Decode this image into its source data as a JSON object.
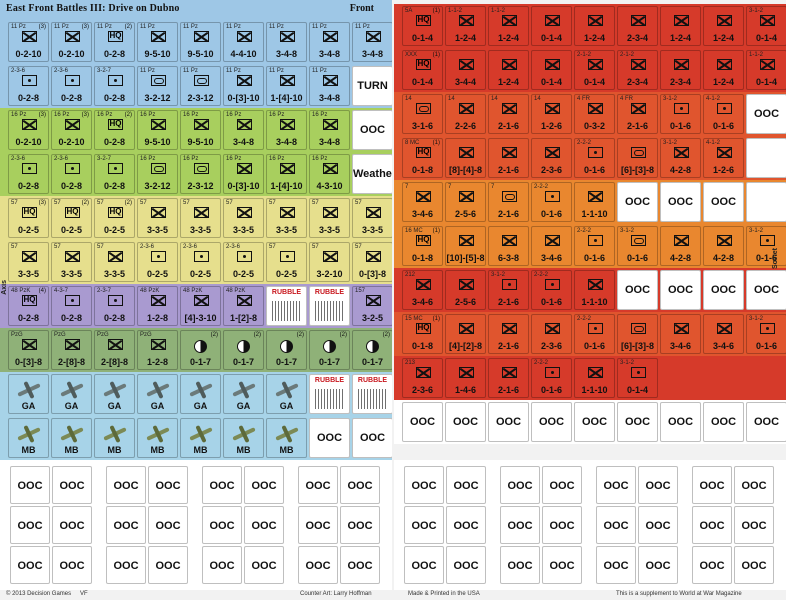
{
  "header": {
    "title": "East Front Battles III: Drive on Dubno",
    "side": "Front"
  },
  "side_labels": {
    "axis": "Axis",
    "soviet": "Soviet"
  },
  "footer": {
    "copyright": "© 2013 Decision Games",
    "code": "VF",
    "art": "Counter Art: Larry Hoffman",
    "made": "Made & Printed in the USA",
    "supplement": "This is a supplement to World at War Magazine"
  },
  "colors": {
    "axis_blue": "#9ec7e6",
    "axis_green": "#a8cf5e",
    "axis_yellow": "#e6df8d",
    "axis_purple": "#a99ad0",
    "axis_darkgreen": "#8fb178",
    "axis_lightblue": "#a7d3e8",
    "soviet_red": "#d63a2a",
    "soviet_orangered": "#e0552e",
    "soviet_orange": "#e9872f"
  },
  "axis": {
    "rows": [
      {
        "color": "axis_blue",
        "counters": [
          {
            "top": "11 Pz",
            "tag": "(3)",
            "sym": "inf",
            "vals": "0-2-10"
          },
          {
            "top": "11 Pz",
            "tag": "(3)",
            "sym": "inf",
            "vals": "0-2-10"
          },
          {
            "top": "11 Pz",
            "tag": "(2)",
            "sym": "hq",
            "hq": "HQ",
            "vals": "0-2-8"
          },
          {
            "top": "11 Pz",
            "sym": "inf",
            "vals": "9-5-10"
          },
          {
            "top": "11 Pz",
            "sym": "inf",
            "vals": "9-5-10"
          },
          {
            "top": "11 Pz",
            "sym": "inf",
            "vals": "4-4-10"
          },
          {
            "top": "11 Pz",
            "sym": "inf",
            "vals": "3-4-8"
          },
          {
            "top": "11 Pz",
            "sym": "inf",
            "vals": "3-4-8"
          },
          {
            "top": "11 Pz",
            "sym": "inf",
            "vals": "3-4-8"
          }
        ]
      },
      {
        "color": "axis_blue",
        "counters": [
          {
            "top": "2-3-6",
            "sym": "art",
            "vals": "0-2-8"
          },
          {
            "top": "2-3-6",
            "sym": "art",
            "vals": "0-2-8"
          },
          {
            "top": "3-2-7",
            "sym": "art",
            "vals": "0-2-8"
          },
          {
            "top": "11 Pz",
            "sym": "arm",
            "vals": "3-2-12"
          },
          {
            "top": "11 Pz",
            "sym": "arm",
            "vals": "2-3-12"
          },
          {
            "top": "11 Pz",
            "sym": "inf",
            "vals": "0-[3]-10"
          },
          {
            "top": "11 Pz",
            "sym": "inf",
            "vals": "1-[4]-10"
          },
          {
            "top": "11 Pz",
            "sym": "inf",
            "vals": "3-4-8"
          },
          {
            "white": true,
            "big": "TURN"
          }
        ]
      },
      {
        "color": "axis_green",
        "counters": [
          {
            "top": "16 Pz",
            "tag": "(3)",
            "sym": "inf",
            "vals": "0-2-10"
          },
          {
            "top": "16 Pz",
            "tag": "(3)",
            "sym": "inf",
            "vals": "0-2-10"
          },
          {
            "top": "16 Pz",
            "tag": "(2)",
            "sym": "hq",
            "hq": "HQ",
            "vals": "0-2-8"
          },
          {
            "top": "16 Pz",
            "sym": "inf",
            "vals": "9-5-10"
          },
          {
            "top": "16 Pz",
            "sym": "inf",
            "vals": "9-5-10"
          },
          {
            "top": "16 Pz",
            "sym": "inf",
            "vals": "3-4-8"
          },
          {
            "top": "16 Pz",
            "sym": "inf",
            "vals": "3-4-8"
          },
          {
            "top": "16 Pz",
            "sym": "inf",
            "vals": "3-4-8"
          },
          {
            "white": true,
            "big": "OOC"
          }
        ]
      },
      {
        "color": "axis_green",
        "counters": [
          {
            "top": "2-3-6",
            "sym": "art",
            "vals": "0-2-8"
          },
          {
            "top": "2-3-6",
            "sym": "art",
            "vals": "0-2-8"
          },
          {
            "top": "3-2-7",
            "sym": "art",
            "vals": "0-2-8"
          },
          {
            "top": "16 Pz",
            "sym": "arm",
            "vals": "3-2-12"
          },
          {
            "top": "16 Pz",
            "sym": "arm",
            "vals": "2-3-12"
          },
          {
            "top": "16 Pz",
            "sym": "inf",
            "vals": "0-[3]-10"
          },
          {
            "top": "16 Pz",
            "sym": "inf",
            "vals": "1-[4]-10"
          },
          {
            "top": "16 Pz",
            "sym": "inf",
            "vals": "4-3-10"
          },
          {
            "white": true,
            "big": "Weather"
          }
        ]
      },
      {
        "color": "axis_yellow",
        "counters": [
          {
            "top": "57",
            "tag": "(3)",
            "sym": "hq",
            "hq": "HQ",
            "vals": "0-2-5"
          },
          {
            "top": "57",
            "tag": "(2)",
            "sym": "hq",
            "hq": "HQ",
            "vals": "0-2-5"
          },
          {
            "top": "57",
            "tag": "(2)",
            "sym": "hq",
            "hq": "HQ",
            "vals": "0-2-5"
          },
          {
            "top": "57",
            "sym": "inf",
            "vals": "3-3-5"
          },
          {
            "top": "57",
            "sym": "inf",
            "vals": "3-3-5"
          },
          {
            "top": "57",
            "sym": "inf",
            "vals": "3-3-5"
          },
          {
            "top": "57",
            "sym": "inf",
            "vals": "3-3-5"
          },
          {
            "top": "57",
            "sym": "inf",
            "vals": "3-3-5"
          },
          {
            "top": "57",
            "sym": "inf",
            "vals": "3-3-5"
          }
        ]
      },
      {
        "color": "axis_yellow",
        "counters": [
          {
            "top": "57",
            "sym": "inf",
            "vals": "3-3-5"
          },
          {
            "top": "57",
            "sym": "inf",
            "vals": "3-3-5"
          },
          {
            "top": "57",
            "sym": "inf",
            "vals": "3-3-5"
          },
          {
            "top": "2-3-6",
            "sym": "art",
            "vals": "0-2-5"
          },
          {
            "top": "2-3-6",
            "sym": "art",
            "vals": "0-2-5"
          },
          {
            "top": "2-3-6",
            "sym": "art",
            "vals": "0-2-5"
          },
          {
            "top": "57",
            "sym": "art",
            "vals": "0-2-5"
          },
          {
            "top": "57",
            "sym": "inf",
            "vals": "3-2-10"
          },
          {
            "top": "57",
            "sym": "inf",
            "vals": "0-[3]-8"
          }
        ]
      },
      {
        "color": "axis_purple",
        "counters": [
          {
            "top": "48 PzK",
            "tag": "(4)",
            "sym": "hq",
            "hq": "HQ",
            "vals": "0-2-8"
          },
          {
            "top": "4-3-7",
            "sym": "art",
            "vals": "0-2-8"
          },
          {
            "top": "2-3-7",
            "sym": "art",
            "vals": "0-2-8"
          },
          {
            "top": "48 PzK",
            "sym": "inf",
            "vals": "1-2-8"
          },
          {
            "top": "48 PzK",
            "sym": "inf",
            "vals": "[4]-3-10"
          },
          {
            "top": "48 PzK",
            "sym": "inf",
            "vals": "1-[2]-8"
          },
          {
            "rubble": true,
            "label": "RUBBLE"
          },
          {
            "rubble": true,
            "label": "RUBBLE"
          },
          {
            "top": "157",
            "sym": "inf",
            "vals": "3-2-5"
          }
        ]
      },
      {
        "color": "axis_darkgreen",
        "counters": [
          {
            "top": "PzG",
            "sym": "inf",
            "vals": "0-[3]-8"
          },
          {
            "top": "PzG",
            "sym": "inf",
            "vals": "2-[8]-8"
          },
          {
            "top": "PzG",
            "sym": "inf",
            "vals": "2-[8]-8"
          },
          {
            "top": "PzG",
            "sym": "inf",
            "vals": "1-2-8"
          },
          {
            "tag": "(2)",
            "moon": true,
            "vals": "0-1-7"
          },
          {
            "tag": "(2)",
            "moon": true,
            "vals": "0-1-7"
          },
          {
            "tag": "(2)",
            "moon": true,
            "vals": "0-1-7"
          },
          {
            "tag": "(2)",
            "moon": true,
            "vals": "0-1-7"
          },
          {
            "tag": "(2)",
            "moon": true,
            "vals": "0-1-7"
          }
        ]
      },
      {
        "color": "axis_lightblue",
        "counters": [
          {
            "plane": "ga",
            "vals": "GA"
          },
          {
            "plane": "ga",
            "vals": "GA"
          },
          {
            "plane": "ga",
            "vals": "GA"
          },
          {
            "plane": "ga",
            "vals": "GA"
          },
          {
            "plane": "ga",
            "vals": "GA"
          },
          {
            "plane": "ga",
            "vals": "GA"
          },
          {
            "plane": "ga",
            "vals": "GA"
          },
          {
            "rubble": true,
            "label": "RUBBLE"
          },
          {
            "rubble": true,
            "label": "RUBBLE"
          }
        ]
      },
      {
        "color": "axis_lightblue",
        "counters": [
          {
            "plane": "mb",
            "vals": "MB"
          },
          {
            "plane": "mb",
            "vals": "MB"
          },
          {
            "plane": "mb",
            "vals": "MB"
          },
          {
            "plane": "mb",
            "vals": "MB"
          },
          {
            "plane": "mb",
            "vals": "MB"
          },
          {
            "plane": "mb",
            "vals": "MB"
          },
          {
            "plane": "mb",
            "vals": "MB"
          },
          {
            "white": true,
            "big": "OOC"
          },
          {
            "white": true,
            "big": "OOC"
          }
        ]
      }
    ]
  },
  "soviet": {
    "rows": [
      {
        "color": "soviet_red",
        "counters": [
          {
            "top": "5A",
            "tag": "(1)",
            "sym": "hq",
            "hq": "HQ",
            "vals": "0-1-4"
          },
          {
            "top": "1-1-2",
            "sym": "inf",
            "vals": "1-2-4"
          },
          {
            "top": "1-1-2",
            "sym": "inf",
            "vals": "1-2-4"
          },
          {
            "sym": "inf",
            "vals": "0-1-4"
          },
          {
            "sym": "inf",
            "vals": "1-2-4"
          },
          {
            "sym": "inf",
            "vals": "2-3-4"
          },
          {
            "sym": "inf",
            "vals": "1-2-4"
          },
          {
            "sym": "inf",
            "vals": "1-2-4"
          },
          {
            "top": "3-1-2",
            "sym": "inf",
            "vals": "0-1-4"
          }
        ]
      },
      {
        "color": "soviet_red",
        "counters": [
          {
            "top": "XXX",
            "tag": "(1)",
            "sym": "hq",
            "hq": "HQ",
            "vals": "0-1-4"
          },
          {
            "sym": "inf",
            "vals": "3-4-4"
          },
          {
            "sym": "inf",
            "vals": "1-2-4"
          },
          {
            "sym": "inf",
            "vals": "0-1-4"
          },
          {
            "top": "2-1-2",
            "sym": "inf",
            "vals": "0-1-4"
          },
          {
            "top": "2-1-2",
            "sym": "inf",
            "vals": "2-3-4"
          },
          {
            "sym": "inf",
            "vals": "2-3-4"
          },
          {
            "sym": "inf",
            "vals": "1-2-4"
          },
          {
            "top": "1-1-2",
            "sym": "inf",
            "vals": "0-1-4"
          }
        ]
      },
      {
        "color": "soviet_orangered",
        "counters": [
          {
            "top": "14",
            "sym": "arm",
            "vals": "3-1-6"
          },
          {
            "top": "14",
            "sym": "inf",
            "vals": "2-2-6"
          },
          {
            "top": "14",
            "sym": "inf",
            "vals": "2-1-6"
          },
          {
            "top": "14",
            "sym": "inf",
            "vals": "1-2-6"
          },
          {
            "top": "4 FR",
            "sym": "inf",
            "vals": "0-3-2"
          },
          {
            "top": "4 FR",
            "sym": "inf",
            "vals": "2-1-6"
          },
          {
            "top": "3-1-2",
            "sym": "art",
            "vals": "0-1-6"
          },
          {
            "top": "4-1-2",
            "sym": "art",
            "vals": "0-1-6"
          },
          {
            "white": true,
            "big": "OOC"
          }
        ]
      },
      {
        "color": "soviet_orangered",
        "counters": [
          {
            "top": "8 MC",
            "tag": "(1)",
            "sym": "hq",
            "hq": "HQ",
            "vals": "0-1-8"
          },
          {
            "sym": "inf",
            "vals": "[8]-[4]-8"
          },
          {
            "sym": "inf",
            "vals": "2-1-6"
          },
          {
            "sym": "inf",
            "vals": "2-3-6"
          },
          {
            "top": "2-2-2",
            "sym": "art",
            "vals": "0-1-6"
          },
          {
            "sym": "arm",
            "vals": "[6]-[3]-8"
          },
          {
            "top": "3-1-2",
            "sym": "inf",
            "vals": "4-2-8"
          },
          {
            "top": "4-1-2",
            "sym": "inf",
            "vals": "1-2-6"
          },
          {
            "white": true,
            "big": ""
          }
        ]
      },
      {
        "color": "soviet_orange",
        "counters": [
          {
            "top": "7",
            "sym": "inf",
            "vals": "3-4-6"
          },
          {
            "top": "7",
            "sym": "inf",
            "vals": "2-5-6"
          },
          {
            "top": "7",
            "sym": "arm",
            "vals": "2-1-6"
          },
          {
            "top": "2-2-2",
            "sym": "art",
            "vals": "0-1-6"
          },
          {
            "sym": "inf",
            "vals": "1-1-10"
          },
          {
            "white": true,
            "big": "OOC"
          },
          {
            "white": true,
            "big": "OOC"
          },
          {
            "white": true,
            "big": "OOC"
          },
          {
            "white": true,
            "big": ""
          }
        ]
      },
      {
        "color": "soviet_orange",
        "counters": [
          {
            "top": "16 MC",
            "tag": "(1)",
            "sym": "hq",
            "hq": "HQ",
            "vals": "0-1-8"
          },
          {
            "sym": "inf",
            "vals": "[10]-[5]-8"
          },
          {
            "sym": "inf",
            "vals": "6-3-8"
          },
          {
            "sym": "inf",
            "vals": "3-4-6"
          },
          {
            "top": "2-2-2",
            "sym": "art",
            "vals": "0-1-6"
          },
          {
            "top": "3-1-2",
            "sym": "arm",
            "vals": "0-1-6"
          },
          {
            "sym": "inf",
            "vals": "4-2-8"
          },
          {
            "sym": "inf",
            "vals": "4-2-8"
          },
          {
            "top": "3-1-2",
            "sym": "art",
            "vals": "0-1-6"
          }
        ]
      },
      {
        "color": "soviet_red",
        "counters": [
          {
            "top": "212",
            "sym": "inf",
            "vals": "3-4-6"
          },
          {
            "sym": "inf",
            "vals": "2-5-6"
          },
          {
            "top": "3-1-2",
            "sym": "art",
            "vals": "2-1-6"
          },
          {
            "top": "2-2-2",
            "sym": "art",
            "vals": "0-1-6"
          },
          {
            "sym": "inf",
            "vals": "1-1-10"
          },
          {
            "white": true,
            "big": "OOC"
          },
          {
            "white": true,
            "big": "OOC"
          },
          {
            "white": true,
            "big": "OOC"
          },
          {
            "white": true,
            "big": "OOC"
          }
        ]
      },
      {
        "color": "soviet_orangered",
        "counters": [
          {
            "top": "15 MC",
            "tag": "(1)",
            "sym": "hq",
            "hq": "HQ",
            "vals": "0-1-8"
          },
          {
            "sym": "inf",
            "vals": "[4]-[2]-8"
          },
          {
            "sym": "inf",
            "vals": "2-1-6"
          },
          {
            "sym": "inf",
            "vals": "2-3-6"
          },
          {
            "top": "2-2-2",
            "sym": "art",
            "vals": "0-1-6"
          },
          {
            "sym": "arm",
            "vals": "[6]-[3]-8"
          },
          {
            "sym": "inf",
            "vals": "3-4-6"
          },
          {
            "sym": "inf",
            "vals": "3-4-6"
          },
          {
            "top": "3-1-2",
            "sym": "art",
            "vals": "0-1-6"
          }
        ]
      },
      {
        "color": "soviet_red",
        "counters": [
          {
            "top": "213",
            "sym": "inf",
            "vals": "2-3-6"
          },
          {
            "sym": "inf",
            "vals": "1-4-6"
          },
          {
            "sym": "inf",
            "vals": "2-1-6"
          },
          {
            "top": "2-2-2",
            "sym": "art",
            "vals": "0-1-6"
          },
          {
            "sym": "inf",
            "vals": "1-1-10"
          },
          {
            "top": "3-1-2",
            "sym": "art",
            "vals": "0-1-4"
          },
          {
            "blank": true
          },
          {
            "blank": true
          },
          {
            "blank": true
          }
        ]
      },
      {
        "color": "white",
        "counters": [
          {
            "white": true,
            "big": "OOC"
          },
          {
            "white": true,
            "big": "OOC"
          },
          {
            "white": true,
            "big": "OOC"
          },
          {
            "white": true,
            "big": "OOC"
          },
          {
            "white": true,
            "big": "OOC"
          },
          {
            "white": true,
            "big": "OOC"
          },
          {
            "white": true,
            "big": "OOC"
          },
          {
            "white": true,
            "big": "OOC"
          },
          {
            "white": true,
            "big": "OOC"
          }
        ]
      }
    ]
  },
  "ooc_label": "OOC"
}
